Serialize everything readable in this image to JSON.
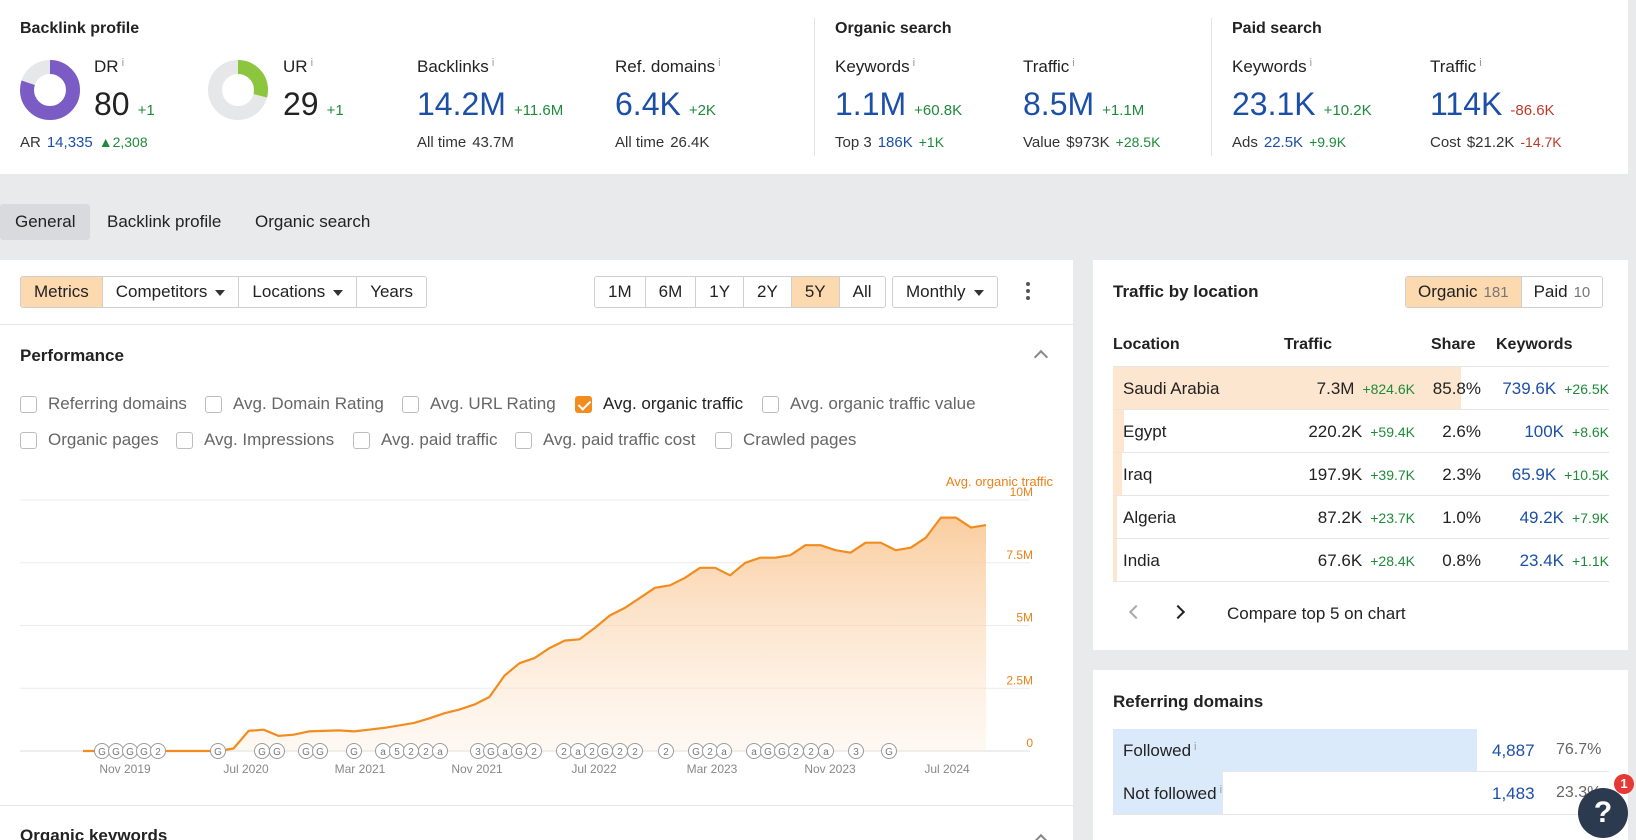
{
  "metrics": {
    "backlink_profile": {
      "title": "Backlink profile",
      "dr": {
        "label": "DR",
        "info": "i",
        "value": "80",
        "delta": "+1",
        "fill_pct": 80
      },
      "ur": {
        "label": "UR",
        "info": "i",
        "value": "29",
        "delta": "+1",
        "fill_pct": 29
      },
      "ar": {
        "label": "AR",
        "value": "14,335",
        "delta": "2,308"
      },
      "backlinks": {
        "label": "Backlinks",
        "info": "i",
        "value": "14.2M",
        "delta": "+11.6M",
        "sub_label": "All time",
        "sub_value": "43.7M"
      },
      "ref_domains": {
        "label": "Ref. domains",
        "info": "i",
        "value": "6.4K",
        "delta": "+2K",
        "sub_label": "All time",
        "sub_value": "26.4K"
      }
    },
    "organic_search": {
      "title": "Organic search",
      "keywords": {
        "label": "Keywords",
        "info": "i",
        "value": "1.1M",
        "delta": "+60.8K",
        "sub_label": "Top 3",
        "sub_value": "186K",
        "sub_delta": "+1K"
      },
      "traffic": {
        "label": "Traffic",
        "info": "i",
        "value": "8.5M",
        "delta": "+1.1M",
        "sub_label": "Value",
        "sub_value": "$973K",
        "sub_delta": "+28.5K"
      }
    },
    "paid_search": {
      "title": "Paid search",
      "keywords": {
        "label": "Keywords",
        "info": "i",
        "value": "23.1K",
        "delta": "+10.2K",
        "sub_label": "Ads",
        "sub_value": "22.5K",
        "sub_delta": "+9.9K"
      },
      "traffic": {
        "label": "Traffic",
        "info": "i",
        "value": "114K",
        "delta": "-86.6K",
        "sub_label": "Cost",
        "sub_value": "$21.2K",
        "sub_delta": "-14.7K"
      }
    }
  },
  "tabs": [
    "General",
    "Backlink profile",
    "Organic search"
  ],
  "toolbar": {
    "left": [
      "Metrics",
      "Competitors",
      "Locations",
      "Years"
    ],
    "ranges": [
      "1M",
      "6M",
      "1Y",
      "2Y",
      "5Y",
      "All"
    ],
    "granularity": "Monthly"
  },
  "performance": {
    "title": "Performance",
    "checkboxes_row1": [
      "Referring domains",
      "Avg. Domain Rating",
      "Avg. URL Rating",
      "Avg. organic traffic",
      "Avg. organic traffic value"
    ],
    "checkboxes_row2": [
      "Organic pages",
      "Avg. Impressions",
      "Avg. paid traffic",
      "Avg. paid traffic cost",
      "Crawled pages"
    ],
    "checked": "Avg. organic traffic"
  },
  "chart_data": {
    "type": "area",
    "series": [
      {
        "name": "Avg. organic traffic",
        "color": "#f28c1e"
      }
    ],
    "x_ticks": [
      "Nov 2019",
      "Jul 2020",
      "Mar 2021",
      "Nov 2021",
      "Jul 2022",
      "Mar 2023",
      "Nov 2023",
      "Jul 2024"
    ],
    "y_ticks": [
      "10M",
      "7.5M",
      "5M",
      "2.5M",
      "0"
    ],
    "ylim": [
      0,
      10000000
    ],
    "x_start": "2019-09",
    "values": [
      0,
      0,
      0,
      0,
      0,
      0,
      0,
      0,
      0,
      0,
      100000,
      800000,
      850000,
      600000,
      650000,
      780000,
      800000,
      820000,
      780000,
      850000,
      920000,
      1020000,
      1120000,
      1300000,
      1500000,
      1650000,
      1850000,
      2150000,
      3000000,
      3500000,
      3700000,
      4100000,
      4400000,
      4450000,
      4900000,
      5400000,
      5700000,
      6100000,
      6500000,
      6600000,
      6900000,
      7300000,
      7300000,
      7000000,
      7500000,
      7700000,
      7700000,
      7800000,
      8200000,
      8200000,
      8000000,
      7900000,
      8300000,
      8300000,
      8000000,
      8100000,
      8500000,
      9300000,
      9300000,
      8900000,
      9000000
    ],
    "annotation_letters": [
      "G",
      "G",
      "G",
      "G",
      "2",
      "G",
      "G",
      "G",
      "G",
      "G",
      "G",
      "a",
      "5",
      "2",
      "2",
      "a",
      "3",
      "G",
      "a",
      "G",
      "2",
      "2",
      "a",
      "2",
      "G",
      "2",
      "2",
      "2",
      "G",
      "2",
      "a",
      "a",
      "G",
      "G",
      "2",
      "2",
      "a",
      "3",
      "G"
    ],
    "grid": true
  },
  "traffic_by_location": {
    "title": "Traffic by location",
    "tabs": [
      {
        "label": "Organic",
        "count": "181"
      },
      {
        "label": "Paid",
        "count": "10"
      }
    ],
    "headers": [
      "Location",
      "Traffic",
      "Share",
      "Keywords"
    ],
    "rows": [
      {
        "location": "Saudi Arabia",
        "traffic": "7.3M",
        "traffic_delta": "+824.6K",
        "share": "85.8%",
        "share_pct": 85.8,
        "keywords": "739.6K",
        "keywords_delta": "+26.5K"
      },
      {
        "location": "Egypt",
        "traffic": "220.2K",
        "traffic_delta": "+59.4K",
        "share": "2.6%",
        "share_pct": 2.6,
        "keywords": "100K",
        "keywords_delta": "+8.6K"
      },
      {
        "location": "Iraq",
        "traffic": "197.9K",
        "traffic_delta": "+39.7K",
        "share": "2.3%",
        "share_pct": 2.3,
        "keywords": "65.9K",
        "keywords_delta": "+10.5K"
      },
      {
        "location": "Algeria",
        "traffic": "87.2K",
        "traffic_delta": "+23.7K",
        "share": "1.0%",
        "share_pct": 1.0,
        "keywords": "49.2K",
        "keywords_delta": "+7.9K"
      },
      {
        "location": "India",
        "traffic": "67.6K",
        "traffic_delta": "+28.4K",
        "share": "0.8%",
        "share_pct": 0.8,
        "keywords": "23.4K",
        "keywords_delta": "+1.1K"
      }
    ],
    "compare_label": "Compare top 5 on chart"
  },
  "referring_domains": {
    "title": "Referring domains",
    "rows": [
      {
        "label": "Followed",
        "info": "i",
        "value": "4,887",
        "pct": "76.7%",
        "fill_pct": 76.7
      },
      {
        "label": "Not followed",
        "info": "i",
        "value": "1,483",
        "pct": "23.3%",
        "fill_pct": 23.3
      }
    ]
  },
  "next_section": {
    "title": "Organic keywords"
  },
  "help": {
    "label": "?",
    "badge": "1"
  }
}
